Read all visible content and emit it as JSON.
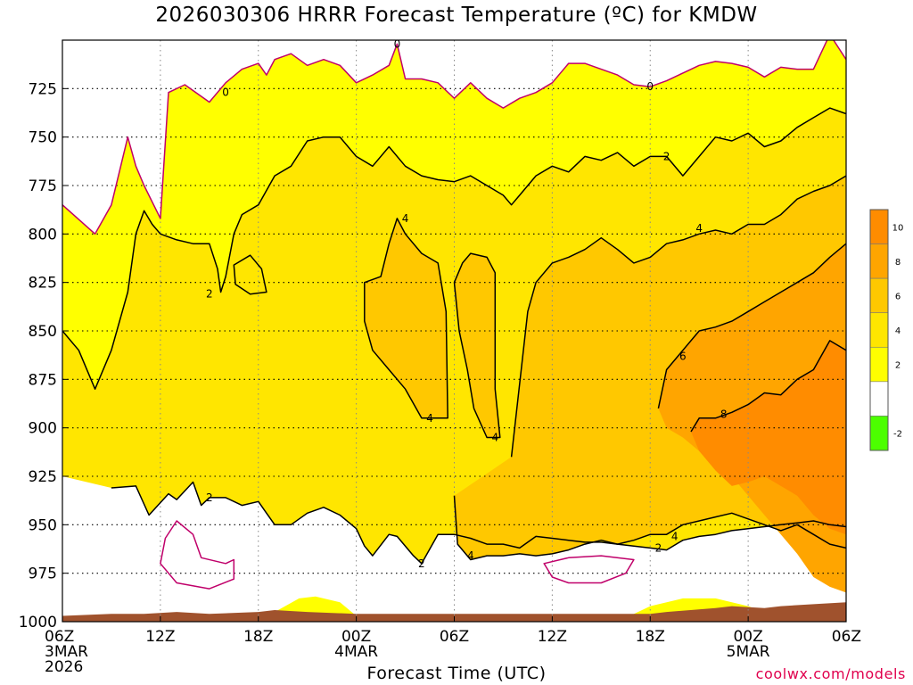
{
  "header": {
    "title": "2026030306 HRRR Forecast Temperature (ºC) for KMDW"
  },
  "footer": {
    "credit": "coolwx.com/models"
  },
  "chart_data": {
    "type": "heatmap",
    "title": "2026030306 HRRR Forecast Temperature (ºC) for KMDW",
    "xlabel": "Forecast Time (UTC)",
    "ylabel": "",
    "x_ticks": [
      {
        "t": 0,
        "label": "06Z",
        "sub": [
          "3MAR",
          "2026"
        ]
      },
      {
        "t": 6,
        "label": "12Z",
        "sub": []
      },
      {
        "t": 12,
        "label": "18Z",
        "sub": []
      },
      {
        "t": 18,
        "label": "00Z",
        "sub": [
          "4MAR"
        ]
      },
      {
        "t": 24,
        "label": "06Z",
        "sub": []
      },
      {
        "t": 30,
        "label": "12Z",
        "sub": []
      },
      {
        "t": 36,
        "label": "18Z",
        "sub": []
      },
      {
        "t": 42,
        "label": "00Z",
        "sub": [
          "5MAR"
        ]
      },
      {
        "t": 48,
        "label": "06Z",
        "sub": []
      }
    ],
    "xlim": [
      0,
      48
    ],
    "y_ticks": [
      725,
      750,
      775,
      800,
      825,
      850,
      875,
      900,
      925,
      950,
      975,
      1000
    ],
    "ylim": [
      700,
      1000
    ],
    "y_axis": "pressure (hPa), 700 hPa at top",
    "grid": true,
    "levels": [
      -2,
      0,
      2,
      4,
      6,
      8,
      10
    ],
    "colorbar": {
      "bands": [
        {
          "from": 8,
          "to": 12,
          "color": "#ff8c00"
        },
        {
          "from": 6,
          "to": 8,
          "color": "#ffa500"
        },
        {
          "from": 4,
          "to": 6,
          "color": "#ffc800"
        },
        {
          "from": 2,
          "to": 4,
          "color": "#ffe600"
        },
        {
          "from": 0,
          "to": 2,
          "color": "#ffff00"
        },
        {
          "from": -2,
          "to": 0,
          "color": "#ffffff"
        },
        {
          "from": -4,
          "to": -2,
          "color": "#4cff00"
        }
      ],
      "labels": [
        10,
        8,
        6,
        4,
        2,
        -2
      ]
    },
    "ground_color": "#a0522d",
    "zero_contour_color": "#c0006a",
    "contours": [
      {
        "value": 0,
        "type": "line",
        "points": [
          [
            0,
            785
          ],
          [
            2,
            800
          ],
          [
            3,
            785
          ],
          [
            4,
            750
          ],
          [
            4.5,
            765
          ],
          [
            5,
            775
          ],
          [
            6,
            792
          ],
          [
            6.5,
            727
          ],
          [
            7.5,
            723
          ],
          [
            9,
            732
          ],
          [
            10,
            722
          ],
          [
            11,
            715
          ],
          [
            12,
            712
          ],
          [
            12.5,
            718
          ],
          [
            13,
            710
          ],
          [
            14,
            707
          ],
          [
            15,
            713
          ],
          [
            16,
            710
          ],
          [
            17,
            713
          ],
          [
            18,
            722
          ],
          [
            19,
            718
          ],
          [
            20,
            713
          ],
          [
            20.5,
            702
          ],
          [
            21,
            720
          ],
          [
            22,
            720
          ],
          [
            23,
            722
          ],
          [
            24,
            730
          ],
          [
            25,
            722
          ],
          [
            26,
            730
          ],
          [
            27,
            735
          ],
          [
            28,
            730
          ],
          [
            29,
            727
          ],
          [
            30,
            722
          ],
          [
            31,
            712
          ],
          [
            32,
            712
          ],
          [
            33,
            715
          ],
          [
            34,
            718
          ],
          [
            35,
            723
          ],
          [
            36,
            724
          ],
          [
            37,
            721
          ],
          [
            38,
            717
          ],
          [
            39,
            713
          ],
          [
            40,
            711
          ],
          [
            41,
            712
          ],
          [
            42,
            714
          ],
          [
            43,
            719
          ],
          [
            44,
            714
          ],
          [
            45,
            715
          ],
          [
            46,
            715
          ],
          [
            47,
            697
          ],
          [
            48,
            710
          ]
        ]
      },
      {
        "value": 0,
        "type": "loop",
        "points": [
          [
            6,
            970
          ],
          [
            6.3,
            957
          ],
          [
            7,
            948
          ],
          [
            8,
            955
          ],
          [
            8.5,
            967
          ],
          [
            10,
            970
          ],
          [
            10.5,
            968
          ],
          [
            10.5,
            978
          ],
          [
            9,
            983
          ],
          [
            7,
            980
          ]
        ]
      },
      {
        "value": 0,
        "type": "loop",
        "points": [
          [
            29.5,
            970
          ],
          [
            31,
            967
          ],
          [
            33,
            966
          ],
          [
            35,
            968
          ],
          [
            34.5,
            975
          ],
          [
            33,
            980
          ],
          [
            31,
            980
          ],
          [
            30,
            977
          ]
        ]
      },
      {
        "value": 2,
        "type": "line",
        "points": [
          [
            3,
            931
          ],
          [
            4.5,
            930
          ],
          [
            5.3,
            945
          ],
          [
            6.5,
            934
          ],
          [
            7,
            937
          ],
          [
            8,
            928
          ],
          [
            8.5,
            940
          ],
          [
            9,
            936
          ],
          [
            10,
            936
          ],
          [
            11,
            940
          ],
          [
            12,
            938
          ],
          [
            12.5,
            944
          ],
          [
            13,
            950
          ],
          [
            14,
            950
          ],
          [
            15,
            944
          ],
          [
            16,
            941
          ],
          [
            17,
            945
          ],
          [
            18,
            952
          ],
          [
            18.5,
            961
          ],
          [
            19,
            966
          ],
          [
            20,
            955
          ],
          [
            20.5,
            956
          ],
          [
            21.5,
            966
          ],
          [
            22,
            970
          ],
          [
            23,
            955
          ],
          [
            24,
            955
          ],
          [
            25,
            957
          ],
          [
            26,
            960
          ],
          [
            27,
            960
          ],
          [
            28,
            962
          ],
          [
            29,
            956
          ],
          [
            30,
            957
          ],
          [
            31,
            958
          ],
          [
            32,
            959
          ],
          [
            33,
            959
          ],
          [
            34,
            960
          ],
          [
            35,
            961
          ],
          [
            36,
            962
          ],
          [
            37,
            963
          ],
          [
            38,
            958
          ],
          [
            39,
            956
          ],
          [
            40,
            955
          ],
          [
            41,
            953
          ],
          [
            42,
            952
          ],
          [
            43,
            951
          ],
          [
            44,
            950
          ],
          [
            45,
            949
          ],
          [
            46,
            948
          ],
          [
            47,
            950
          ],
          [
            48,
            951
          ]
        ]
      },
      {
        "value": 2,
        "type": "line",
        "points": [
          [
            0,
            850
          ],
          [
            1,
            860
          ],
          [
            2,
            880
          ],
          [
            3,
            860
          ],
          [
            4,
            830
          ],
          [
            4.5,
            800
          ],
          [
            5,
            788
          ],
          [
            5.5,
            795
          ],
          [
            6,
            800
          ],
          [
            7,
            803
          ],
          [
            8,
            805
          ],
          [
            9,
            805
          ],
          [
            9.5,
            818
          ],
          [
            9.7,
            830
          ],
          [
            10,
            822
          ],
          [
            10.5,
            800
          ],
          [
            11,
            790
          ],
          [
            12,
            785
          ],
          [
            13,
            770
          ],
          [
            14,
            765
          ],
          [
            15,
            752
          ],
          [
            16,
            750
          ],
          [
            17,
            750
          ],
          [
            18,
            760
          ],
          [
            19,
            765
          ],
          [
            20,
            755
          ],
          [
            21,
            765
          ],
          [
            22,
            770
          ],
          [
            23,
            772
          ],
          [
            24,
            773
          ],
          [
            25,
            770
          ],
          [
            26,
            775
          ],
          [
            27,
            780
          ],
          [
            27.5,
            785
          ],
          [
            28,
            780
          ],
          [
            29,
            770
          ],
          [
            30,
            765
          ],
          [
            31,
            768
          ],
          [
            32,
            760
          ],
          [
            33,
            762
          ],
          [
            34,
            758
          ],
          [
            35,
            765
          ],
          [
            36,
            760
          ],
          [
            37,
            760
          ],
          [
            38,
            770
          ],
          [
            39,
            760
          ],
          [
            40,
            750
          ],
          [
            41,
            752
          ],
          [
            42,
            748
          ],
          [
            43,
            755
          ],
          [
            44,
            752
          ],
          [
            45,
            745
          ],
          [
            46,
            740
          ],
          [
            47,
            735
          ],
          [
            48,
            738
          ]
        ]
      },
      {
        "value": 2,
        "type": "loop",
        "points": [
          [
            10.5,
            816
          ],
          [
            11.5,
            811
          ],
          [
            12.2,
            818
          ],
          [
            12.5,
            830
          ],
          [
            11.5,
            831
          ],
          [
            10.6,
            826
          ]
        ]
      },
      {
        "value": 4,
        "type": "loop",
        "points": [
          [
            18.5,
            825
          ],
          [
            19.5,
            822
          ],
          [
            20,
            805
          ],
          [
            20.5,
            792
          ],
          [
            21,
            800
          ],
          [
            22,
            810
          ],
          [
            23,
            815
          ],
          [
            23.5,
            840
          ],
          [
            23.6,
            895
          ],
          [
            22,
            895
          ],
          [
            21,
            880
          ],
          [
            20,
            870
          ],
          [
            19,
            860
          ],
          [
            18.5,
            845
          ]
        ]
      },
      {
        "value": 4,
        "type": "loop",
        "points": [
          [
            24,
            825
          ],
          [
            24.5,
            815
          ],
          [
            25,
            810
          ],
          [
            26,
            812
          ],
          [
            26.5,
            820
          ],
          [
            26.5,
            880
          ],
          [
            26.8,
            905
          ],
          [
            26,
            905
          ],
          [
            25.2,
            890
          ],
          [
            24.8,
            870
          ],
          [
            24.3,
            850
          ]
        ]
      },
      {
        "value": 4,
        "type": "line",
        "points": [
          [
            27.5,
            915
          ],
          [
            28.5,
            840
          ],
          [
            29,
            825
          ],
          [
            30,
            815
          ],
          [
            31,
            812
          ],
          [
            32,
            808
          ],
          [
            33,
            802
          ],
          [
            34,
            808
          ],
          [
            35,
            815
          ],
          [
            36,
            812
          ],
          [
            37,
            805
          ],
          [
            38,
            803
          ],
          [
            39,
            800
          ],
          [
            40,
            798
          ],
          [
            41,
            800
          ],
          [
            42,
            795
          ],
          [
            43,
            795
          ],
          [
            44,
            790
          ],
          [
            45,
            782
          ],
          [
            46,
            778
          ],
          [
            47,
            775
          ],
          [
            48,
            770
          ]
        ]
      },
      {
        "value": 4,
        "type": "line",
        "points": [
          [
            24,
            935
          ],
          [
            24.2,
            960
          ],
          [
            25,
            968
          ],
          [
            26,
            966
          ],
          [
            27,
            966
          ],
          [
            28,
            965
          ],
          [
            29,
            966
          ],
          [
            30,
            965
          ],
          [
            31,
            963
          ],
          [
            32,
            960
          ],
          [
            33,
            958
          ],
          [
            34,
            960
          ],
          [
            35,
            958
          ],
          [
            36,
            955
          ],
          [
            37,
            955
          ],
          [
            38,
            950
          ],
          [
            39,
            948
          ],
          [
            40,
            946
          ],
          [
            41,
            944
          ],
          [
            42,
            947
          ],
          [
            43,
            950
          ],
          [
            44,
            953
          ],
          [
            45,
            950
          ],
          [
            46,
            955
          ],
          [
            47,
            960
          ],
          [
            48,
            962
          ]
        ]
      },
      {
        "value": 6,
        "type": "line",
        "points": [
          [
            36.5,
            890
          ],
          [
            37,
            870
          ],
          [
            38,
            860
          ],
          [
            39,
            850
          ],
          [
            40,
            848
          ],
          [
            41,
            845
          ],
          [
            42,
            840
          ],
          [
            43,
            835
          ],
          [
            44,
            830
          ],
          [
            45,
            825
          ],
          [
            46,
            820
          ],
          [
            47,
            812
          ],
          [
            48,
            805
          ]
        ]
      },
      {
        "value": 8,
        "type": "line",
        "points": [
          [
            38.5,
            902
          ],
          [
            39,
            895
          ],
          [
            40,
            895
          ],
          [
            41,
            892
          ],
          [
            42,
            888
          ],
          [
            43,
            882
          ],
          [
            44,
            883
          ],
          [
            45,
            875
          ],
          [
            46,
            870
          ],
          [
            47,
            855
          ],
          [
            48,
            860
          ]
        ]
      }
    ]
  }
}
